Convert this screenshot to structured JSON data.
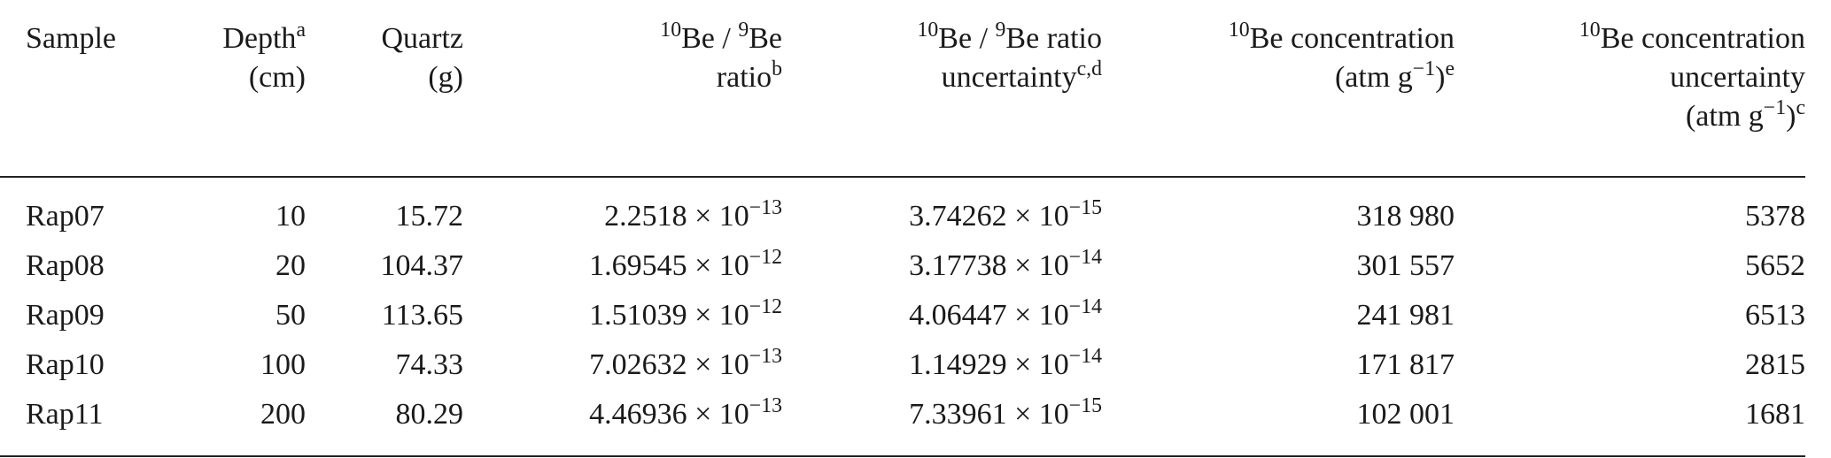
{
  "table": {
    "header": [
      [
        "Sample"
      ],
      [
        "Depth",
        "a",
        "(cm)"
      ],
      [
        "Quartz",
        "(g)"
      ],
      [
        "10",
        "Be / ",
        "9",
        "Be",
        "ratio",
        "b"
      ],
      [
        "10",
        "Be / ",
        "9",
        "Be ratio",
        "uncertainty",
        "c,d"
      ],
      [
        "10",
        "Be concentration",
        "(atm g",
        "−1",
        ")",
        "e"
      ],
      [
        "10",
        "Be concentration",
        "uncertainty",
        "(atm g",
        "−1",
        ")",
        "c"
      ]
    ],
    "rows": [
      [
        "Rap07",
        "10",
        "15.72",
        [
          "2.2518 × 10",
          "−13"
        ],
        [
          "3.74262 × 10",
          "−15"
        ],
        "318 980",
        "5378"
      ],
      [
        "Rap08",
        "20",
        "104.37",
        [
          "1.69545 × 10",
          "−12"
        ],
        [
          "3.17738 × 10",
          "−14"
        ],
        "301 557",
        "5652"
      ],
      [
        "Rap09",
        "50",
        "113.65",
        [
          "1.51039 × 10",
          "−12"
        ],
        [
          "4.06447 × 10",
          "−14"
        ],
        "241 981",
        "6513"
      ],
      [
        "Rap10",
        "100",
        "74.33",
        [
          "7.02632 × 10",
          "−13"
        ],
        [
          "1.14929 × 10",
          "−14"
        ],
        "171 817",
        "2815"
      ],
      [
        "Rap11",
        "200",
        "80.29",
        [
          "4.46936 × 10",
          "−13"
        ],
        [
          "7.33961 × 10",
          "−15"
        ],
        "102 001",
        "1681"
      ]
    ]
  }
}
